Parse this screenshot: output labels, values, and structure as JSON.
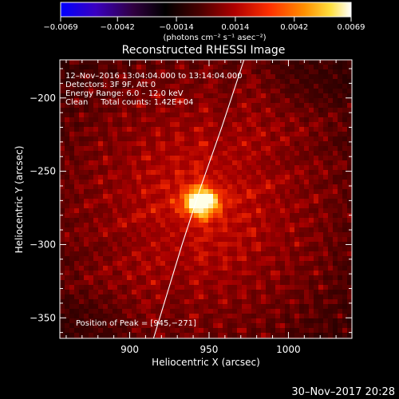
{
  "chart_data": {
    "type": "heatmap",
    "title": "Reconstructed RHESSI Image",
    "xlabel": "Heliocentric X (arcsec)",
    "ylabel": "Heliocentric Y (arcsec)",
    "xlim": [
      856,
      1040
    ],
    "ylim": [
      -364,
      -174
    ],
    "x_ticks": [
      900,
      950,
      1000
    ],
    "y_ticks": [
      -200,
      -250,
      -300,
      -350
    ],
    "x_tick_labels": [
      "900",
      "950",
      "1000"
    ],
    "y_tick_labels": [
      "−200",
      "−250",
      "−300",
      "−350"
    ],
    "colorbar": {
      "min": -0.0069,
      "max": 0.0069,
      "tick_values": [
        -0.0069,
        -0.0042,
        -0.0014,
        0.0014,
        0.0042,
        0.0069
      ],
      "tick_labels": [
        "−0.0069",
        "−0.0042",
        "−0.0014",
        "0.0014",
        "0.0042",
        "0.0069"
      ],
      "units": "(photons cm⁻² s⁻¹ asec⁻²)",
      "colormap": "rhessi-hot"
    },
    "annotations": [
      "12–Nov–2016 13:04:04.000 to 13:14:04.000",
      "Detectors: 3F 9F, Att 0",
      "Energy Range: 6.0 – 12.0 keV",
      "Clean     Total counts: 1.42E+04"
    ],
    "peak_label": "Position of Peak = [945,−271]",
    "peak": [
      945,
      -271
    ],
    "limb_curve": [
      [
        915,
        -364
      ],
      [
        933,
        -300
      ],
      [
        945,
        -260
      ],
      [
        958,
        -220
      ],
      [
        972,
        -174
      ]
    ]
  },
  "footer_date": "30–Nov–2017 20:28"
}
